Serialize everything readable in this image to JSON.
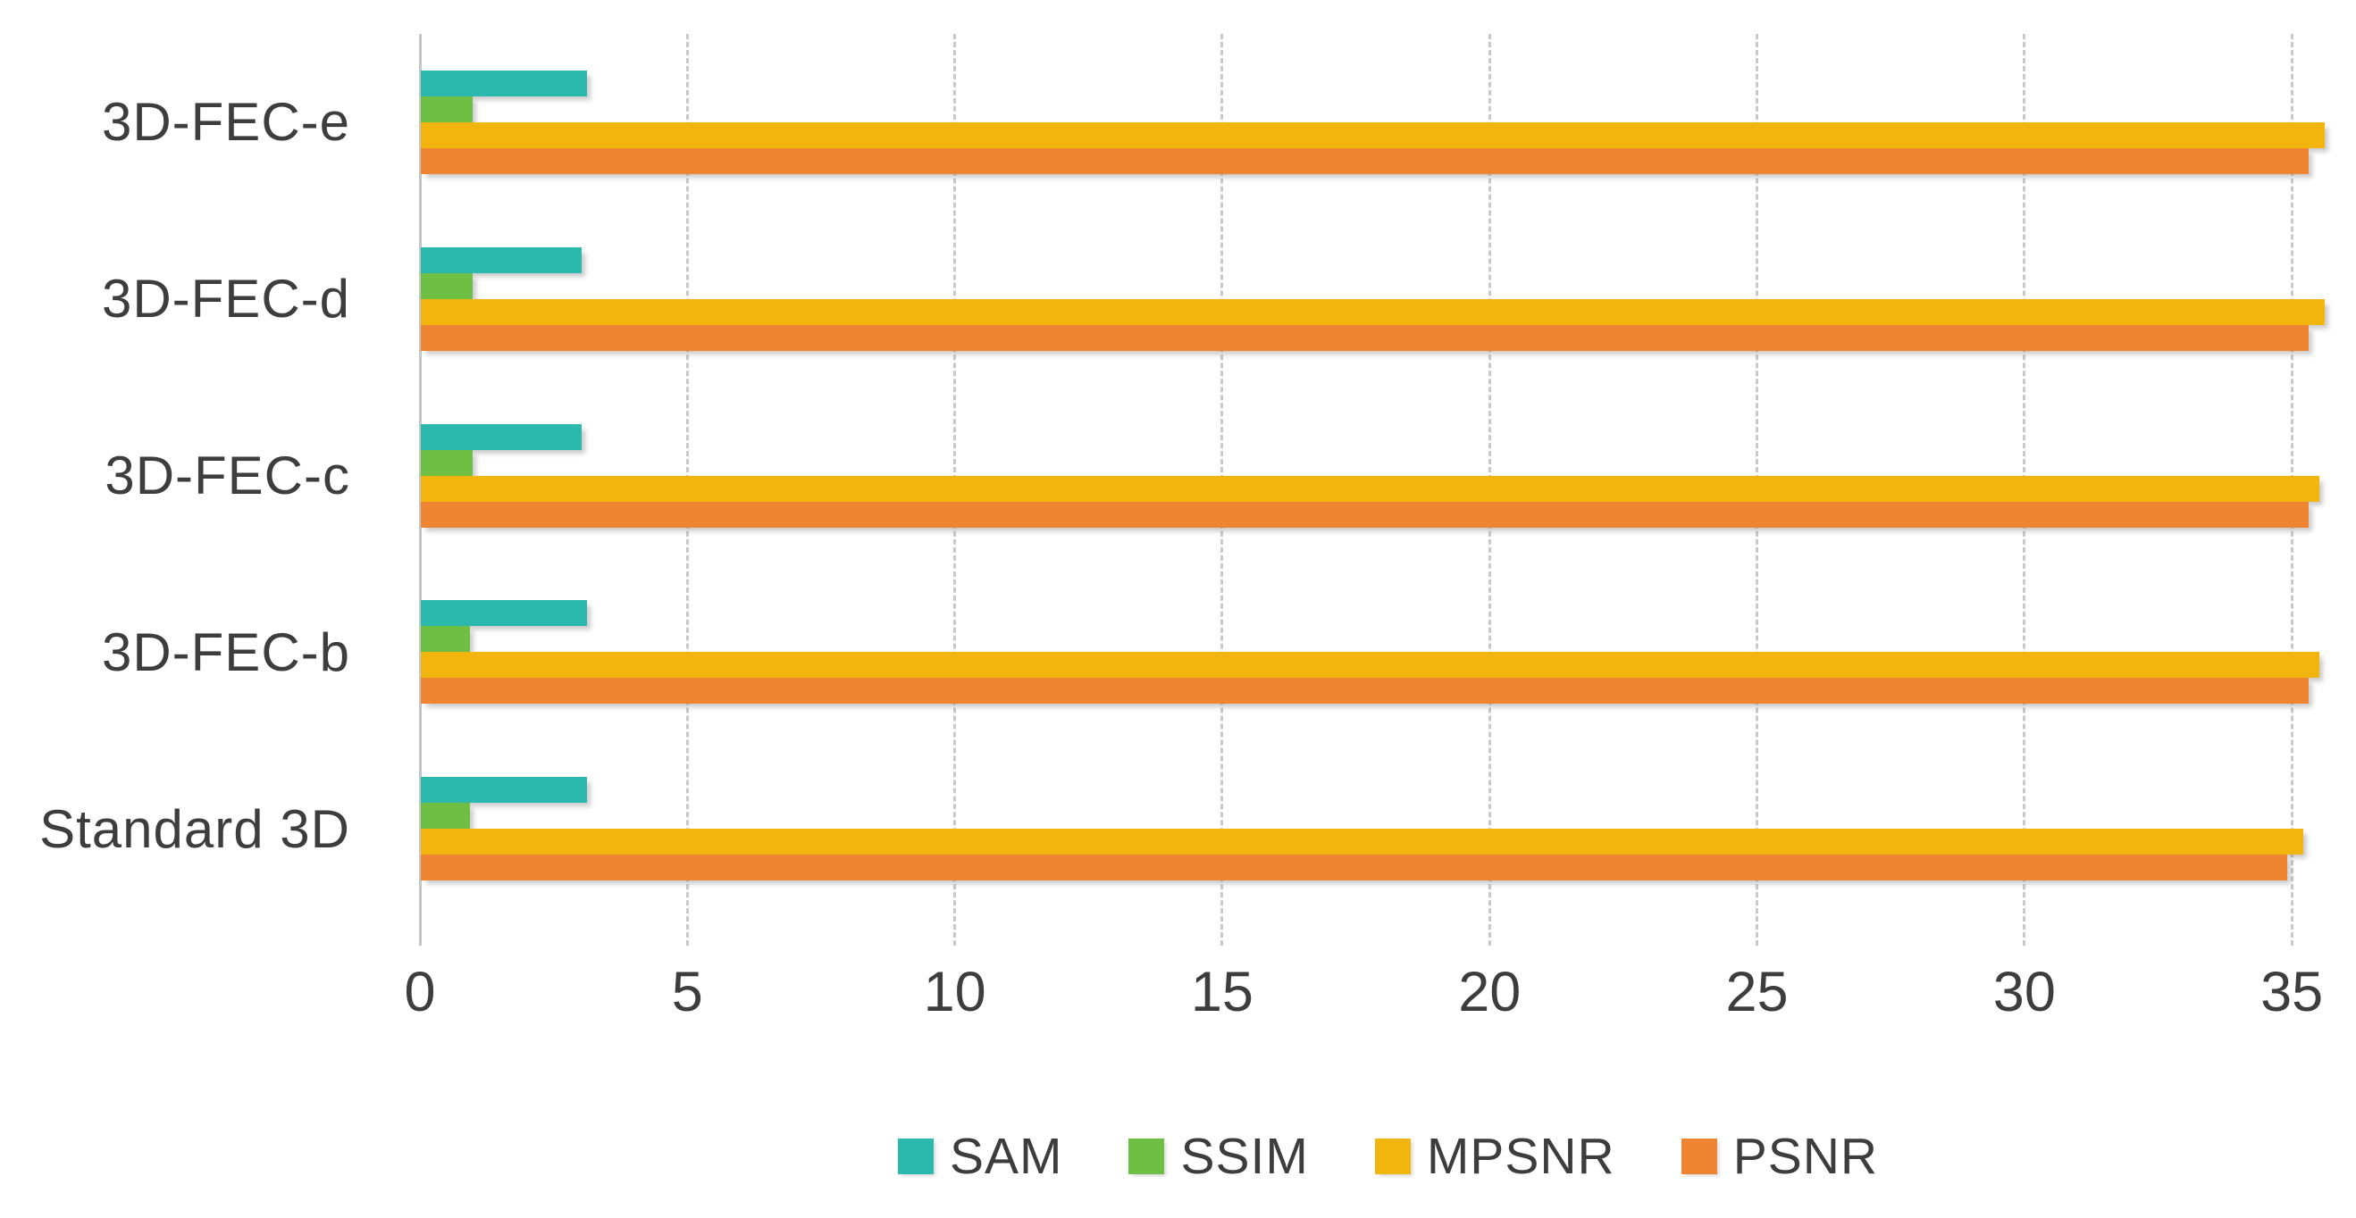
{
  "chart_data": {
    "type": "bar",
    "orientation": "horizontal",
    "title": "",
    "xlabel": "",
    "ylabel": "",
    "categories": [
      "3D-FEC-e",
      "3D-FEC-d",
      "3D-FEC-c",
      "3D-FEC-b",
      "Standard 3D"
    ],
    "series": [
      {
        "name": "SAM",
        "color": "#2bb8ad",
        "values": [
          3.1,
          3.0,
          3.0,
          3.1,
          3.1
        ]
      },
      {
        "name": "SSIM",
        "color": "#6fbf44",
        "values": [
          0.97,
          0.97,
          0.97,
          0.92,
          0.92
        ]
      },
      {
        "name": "MPSNR",
        "color": "#f2b50e",
        "values": [
          35.6,
          35.6,
          35.5,
          35.5,
          35.2
        ]
      },
      {
        "name": "PSNR",
        "color": "#ef8432",
        "values": [
          35.3,
          35.3,
          35.3,
          35.3,
          34.9
        ]
      }
    ],
    "xlim": [
      0,
      36.2
    ],
    "xticks": [
      0,
      5,
      10,
      15,
      20,
      25,
      30,
      35
    ],
    "grid": true,
    "gridline_style": "dashed",
    "gridline_color": "#c9c9c9",
    "text_color": "#3d3d3d",
    "background_color": "#ffffff",
    "legend_position": "bottom",
    "legend_entries": [
      "SAM",
      "SSIM",
      "MPSNR",
      "PSNR"
    ]
  }
}
